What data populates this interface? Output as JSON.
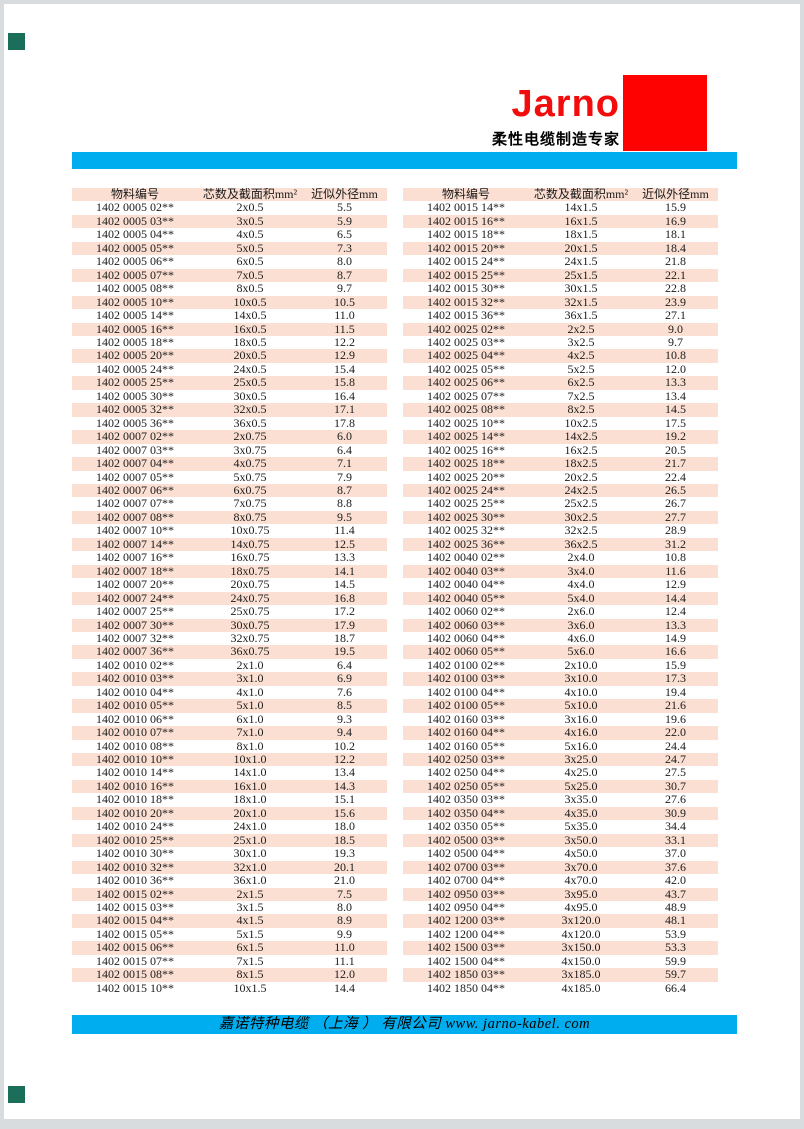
{
  "brand": {
    "logo_text": "Jarno",
    "tagline": "柔性电缆制造专家",
    "colors": {
      "brand_red": "#f20c0c",
      "accent_cyan": "#00aeef",
      "row_pink": "#fbdfd2",
      "corner_green": "#1a6e5a"
    }
  },
  "footer": {
    "company_line": "嘉诺特种电缆 （上海 ） 有限公司 www. jarno-kabel. com"
  },
  "table_headers": [
    "物料编号",
    "芯数及截面积mm²",
    "近似外径mm"
  ],
  "left_table_rows": [
    [
      "1402 0005 02**",
      "2x0.5",
      "5.5"
    ],
    [
      "1402 0005 03**",
      "3x0.5",
      "5.9"
    ],
    [
      "1402 0005 04**",
      "4x0.5",
      "6.5"
    ],
    [
      "1402 0005 05**",
      "5x0.5",
      "7.3"
    ],
    [
      "1402 0005 06**",
      "6x0.5",
      "8.0"
    ],
    [
      "1402 0005 07**",
      "7x0.5",
      "8.7"
    ],
    [
      "1402 0005 08**",
      "8x0.5",
      "9.7"
    ],
    [
      "1402 0005 10**",
      "10x0.5",
      "10.5"
    ],
    [
      "1402 0005 14**",
      "14x0.5",
      "11.0"
    ],
    [
      "1402 0005 16**",
      "16x0.5",
      "11.5"
    ],
    [
      "1402 0005 18**",
      "18x0.5",
      "12.2"
    ],
    [
      "1402 0005 20**",
      "20x0.5",
      "12.9"
    ],
    [
      "1402 0005 24**",
      "24x0.5",
      "15.4"
    ],
    [
      "1402 0005 25**",
      "25x0.5",
      "15.8"
    ],
    [
      "1402 0005 30**",
      "30x0.5",
      "16.4"
    ],
    [
      "1402 0005 32**",
      "32x0.5",
      "17.1"
    ],
    [
      "1402 0005 36**",
      "36x0.5",
      "17.8"
    ],
    [
      "1402 0007 02**",
      "2x0.75",
      "6.0"
    ],
    [
      "1402 0007 03**",
      "3x0.75",
      "6.4"
    ],
    [
      "1402 0007 04**",
      "4x0.75",
      "7.1"
    ],
    [
      "1402 0007 05**",
      "5x0.75",
      "7.9"
    ],
    [
      "1402 0007 06**",
      "6x0.75",
      "8.7"
    ],
    [
      "1402 0007 07**",
      "7x0.75",
      "8.8"
    ],
    [
      "1402 0007 08**",
      "8x0.75",
      "9.5"
    ],
    [
      "1402 0007 10**",
      "10x0.75",
      "11.4"
    ],
    [
      "1402 0007 14**",
      "14x0.75",
      "12.5"
    ],
    [
      "1402 0007 16**",
      "16x0.75",
      "13.3"
    ],
    [
      "1402 0007 18**",
      "18x0.75",
      "14.1"
    ],
    [
      "1402 0007 20**",
      "20x0.75",
      "14.5"
    ],
    [
      "1402 0007 24**",
      "24x0.75",
      "16.8"
    ],
    [
      "1402 0007 25**",
      "25x0.75",
      "17.2"
    ],
    [
      "1402 0007 30**",
      "30x0.75",
      "17.9"
    ],
    [
      "1402 0007 32**",
      "32x0.75",
      "18.7"
    ],
    [
      "1402 0007 36**",
      "36x0.75",
      "19.5"
    ],
    [
      "1402 0010 02**",
      "2x1.0",
      "6.4"
    ],
    [
      "1402 0010 03**",
      "3x1.0",
      "6.9"
    ],
    [
      "1402 0010 04**",
      "4x1.0",
      "7.6"
    ],
    [
      "1402 0010 05**",
      "5x1.0",
      "8.5"
    ],
    [
      "1402 0010 06**",
      "6x1.0",
      "9.3"
    ],
    [
      "1402 0010 07**",
      "7x1.0",
      "9.4"
    ],
    [
      "1402 0010 08**",
      "8x1.0",
      "10.2"
    ],
    [
      "1402 0010 10**",
      "10x1.0",
      "12.2"
    ],
    [
      "1402 0010 14**",
      "14x1.0",
      "13.4"
    ],
    [
      "1402 0010 16**",
      "16x1.0",
      "14.3"
    ],
    [
      "1402 0010 18**",
      "18x1.0",
      "15.1"
    ],
    [
      "1402 0010 20**",
      "20x1.0",
      "15.6"
    ],
    [
      "1402 0010 24**",
      "24x1.0",
      "18.0"
    ],
    [
      "1402 0010 25**",
      "25x1.0",
      "18.5"
    ],
    [
      "1402 0010 30**",
      "30x1.0",
      "19.3"
    ],
    [
      "1402 0010 32**",
      "32x1.0",
      "20.1"
    ],
    [
      "1402 0010 36**",
      "36x1.0",
      "21.0"
    ],
    [
      "1402 0015 02**",
      "2x1.5",
      "7.5"
    ],
    [
      "1402 0015 03**",
      "3x1.5",
      "8.0"
    ],
    [
      "1402 0015 04**",
      "4x1.5",
      "8.9"
    ],
    [
      "1402 0015 05**",
      "5x1.5",
      "9.9"
    ],
    [
      "1402 0015 06**",
      "6x1.5",
      "11.0"
    ],
    [
      "1402 0015 07**",
      "7x1.5",
      "11.1"
    ],
    [
      "1402 0015 08**",
      "8x1.5",
      "12.0"
    ],
    [
      "1402 0015 10**",
      "10x1.5",
      "14.4"
    ]
  ],
  "right_table_rows": [
    [
      "1402 0015 14**",
      "14x1.5",
      "15.9"
    ],
    [
      "1402 0015 16**",
      "16x1.5",
      "16.9"
    ],
    [
      "1402 0015 18**",
      "18x1.5",
      "18.1"
    ],
    [
      "1402 0015 20**",
      "20x1.5",
      "18.4"
    ],
    [
      "1402 0015 24**",
      "24x1.5",
      "21.8"
    ],
    [
      "1402 0015 25**",
      "25x1.5",
      "22.1"
    ],
    [
      "1402 0015 30**",
      "30x1.5",
      "22.8"
    ],
    [
      "1402 0015 32**",
      "32x1.5",
      "23.9"
    ],
    [
      "1402 0015 36**",
      "36x1.5",
      "27.1"
    ],
    [
      "1402 0025 02**",
      "2x2.5",
      "9.0"
    ],
    [
      "1402 0025 03**",
      "3x2.5",
      "9.7"
    ],
    [
      "1402 0025 04**",
      "4x2.5",
      "10.8"
    ],
    [
      "1402 0025 05**",
      "5x2.5",
      "12.0"
    ],
    [
      "1402 0025 06**",
      "6x2.5",
      "13.3"
    ],
    [
      "1402 0025 07**",
      "7x2.5",
      "13.4"
    ],
    [
      "1402 0025 08**",
      "8x2.5",
      "14.5"
    ],
    [
      "1402 0025 10**",
      "10x2.5",
      "17.5"
    ],
    [
      "1402 0025 14**",
      "14x2.5",
      "19.2"
    ],
    [
      "1402 0025 16**",
      "16x2.5",
      "20.5"
    ],
    [
      "1402 0025 18**",
      "18x2.5",
      "21.7"
    ],
    [
      "1402 0025 20**",
      "20x2.5",
      "22.4"
    ],
    [
      "1402 0025 24**",
      "24x2.5",
      "26.5"
    ],
    [
      "1402 0025 25**",
      "25x2.5",
      "26.7"
    ],
    [
      "1402 0025 30**",
      "30x2.5",
      "27.7"
    ],
    [
      "1402 0025 32**",
      "32x2.5",
      "28.9"
    ],
    [
      "1402 0025 36**",
      "36x2.5",
      "31.2"
    ],
    [
      "1402 0040 02**",
      "2x4.0",
      "10.8"
    ],
    [
      "1402 0040 03**",
      "3x4.0",
      "11.6"
    ],
    [
      "1402 0040 04**",
      "4x4.0",
      "12.9"
    ],
    [
      "1402 0040 05**",
      "5x4.0",
      "14.4"
    ],
    [
      "1402 0060 02**",
      "2x6.0",
      "12.4"
    ],
    [
      "1402 0060 03**",
      "3x6.0",
      "13.3"
    ],
    [
      "1402 0060 04**",
      "4x6.0",
      "14.9"
    ],
    [
      "1402 0060 05**",
      "5x6.0",
      "16.6"
    ],
    [
      "1402 0100 02**",
      "2x10.0",
      "15.9"
    ],
    [
      "1402 0100 03**",
      "3x10.0",
      "17.3"
    ],
    [
      "1402 0100 04**",
      "4x10.0",
      "19.4"
    ],
    [
      "1402 0100 05**",
      "5x10.0",
      "21.6"
    ],
    [
      "1402 0160 03**",
      "3x16.0",
      "19.6"
    ],
    [
      "1402 0160 04**",
      "4x16.0",
      "22.0"
    ],
    [
      "1402 0160 05**",
      "5x16.0",
      "24.4"
    ],
    [
      "1402 0250 03**",
      "3x25.0",
      "24.7"
    ],
    [
      "1402 0250 04**",
      "4x25.0",
      "27.5"
    ],
    [
      "1402 0250 05**",
      "5x25.0",
      "30.7"
    ],
    [
      "1402 0350 03**",
      "3x35.0",
      "27.6"
    ],
    [
      "1402 0350 04**",
      "4x35.0",
      "30.9"
    ],
    [
      "1402 0350 05**",
      "5x35.0",
      "34.4"
    ],
    [
      "1402 0500 03**",
      "3x50.0",
      "33.1"
    ],
    [
      "1402 0500 04**",
      "4x50.0",
      "37.0"
    ],
    [
      "1402 0700 03**",
      "3x70.0",
      "37.6"
    ],
    [
      "1402 0700 04**",
      "4x70.0",
      "42.0"
    ],
    [
      "1402 0950 03**",
      "3x95.0",
      "43.7"
    ],
    [
      "1402 0950 04**",
      "4x95.0",
      "48.9"
    ],
    [
      "1402 1200 03**",
      "3x120.0",
      "48.1"
    ],
    [
      "1402 1200 04**",
      "4x120.0",
      "53.9"
    ],
    [
      "1402 1500 03**",
      "3x150.0",
      "53.3"
    ],
    [
      "1402 1500 04**",
      "4x150.0",
      "59.9"
    ],
    [
      "1402 1850 03**",
      "3x185.0",
      "59.7"
    ],
    [
      "1402 1850 04**",
      "4x185.0",
      "66.4"
    ]
  ]
}
